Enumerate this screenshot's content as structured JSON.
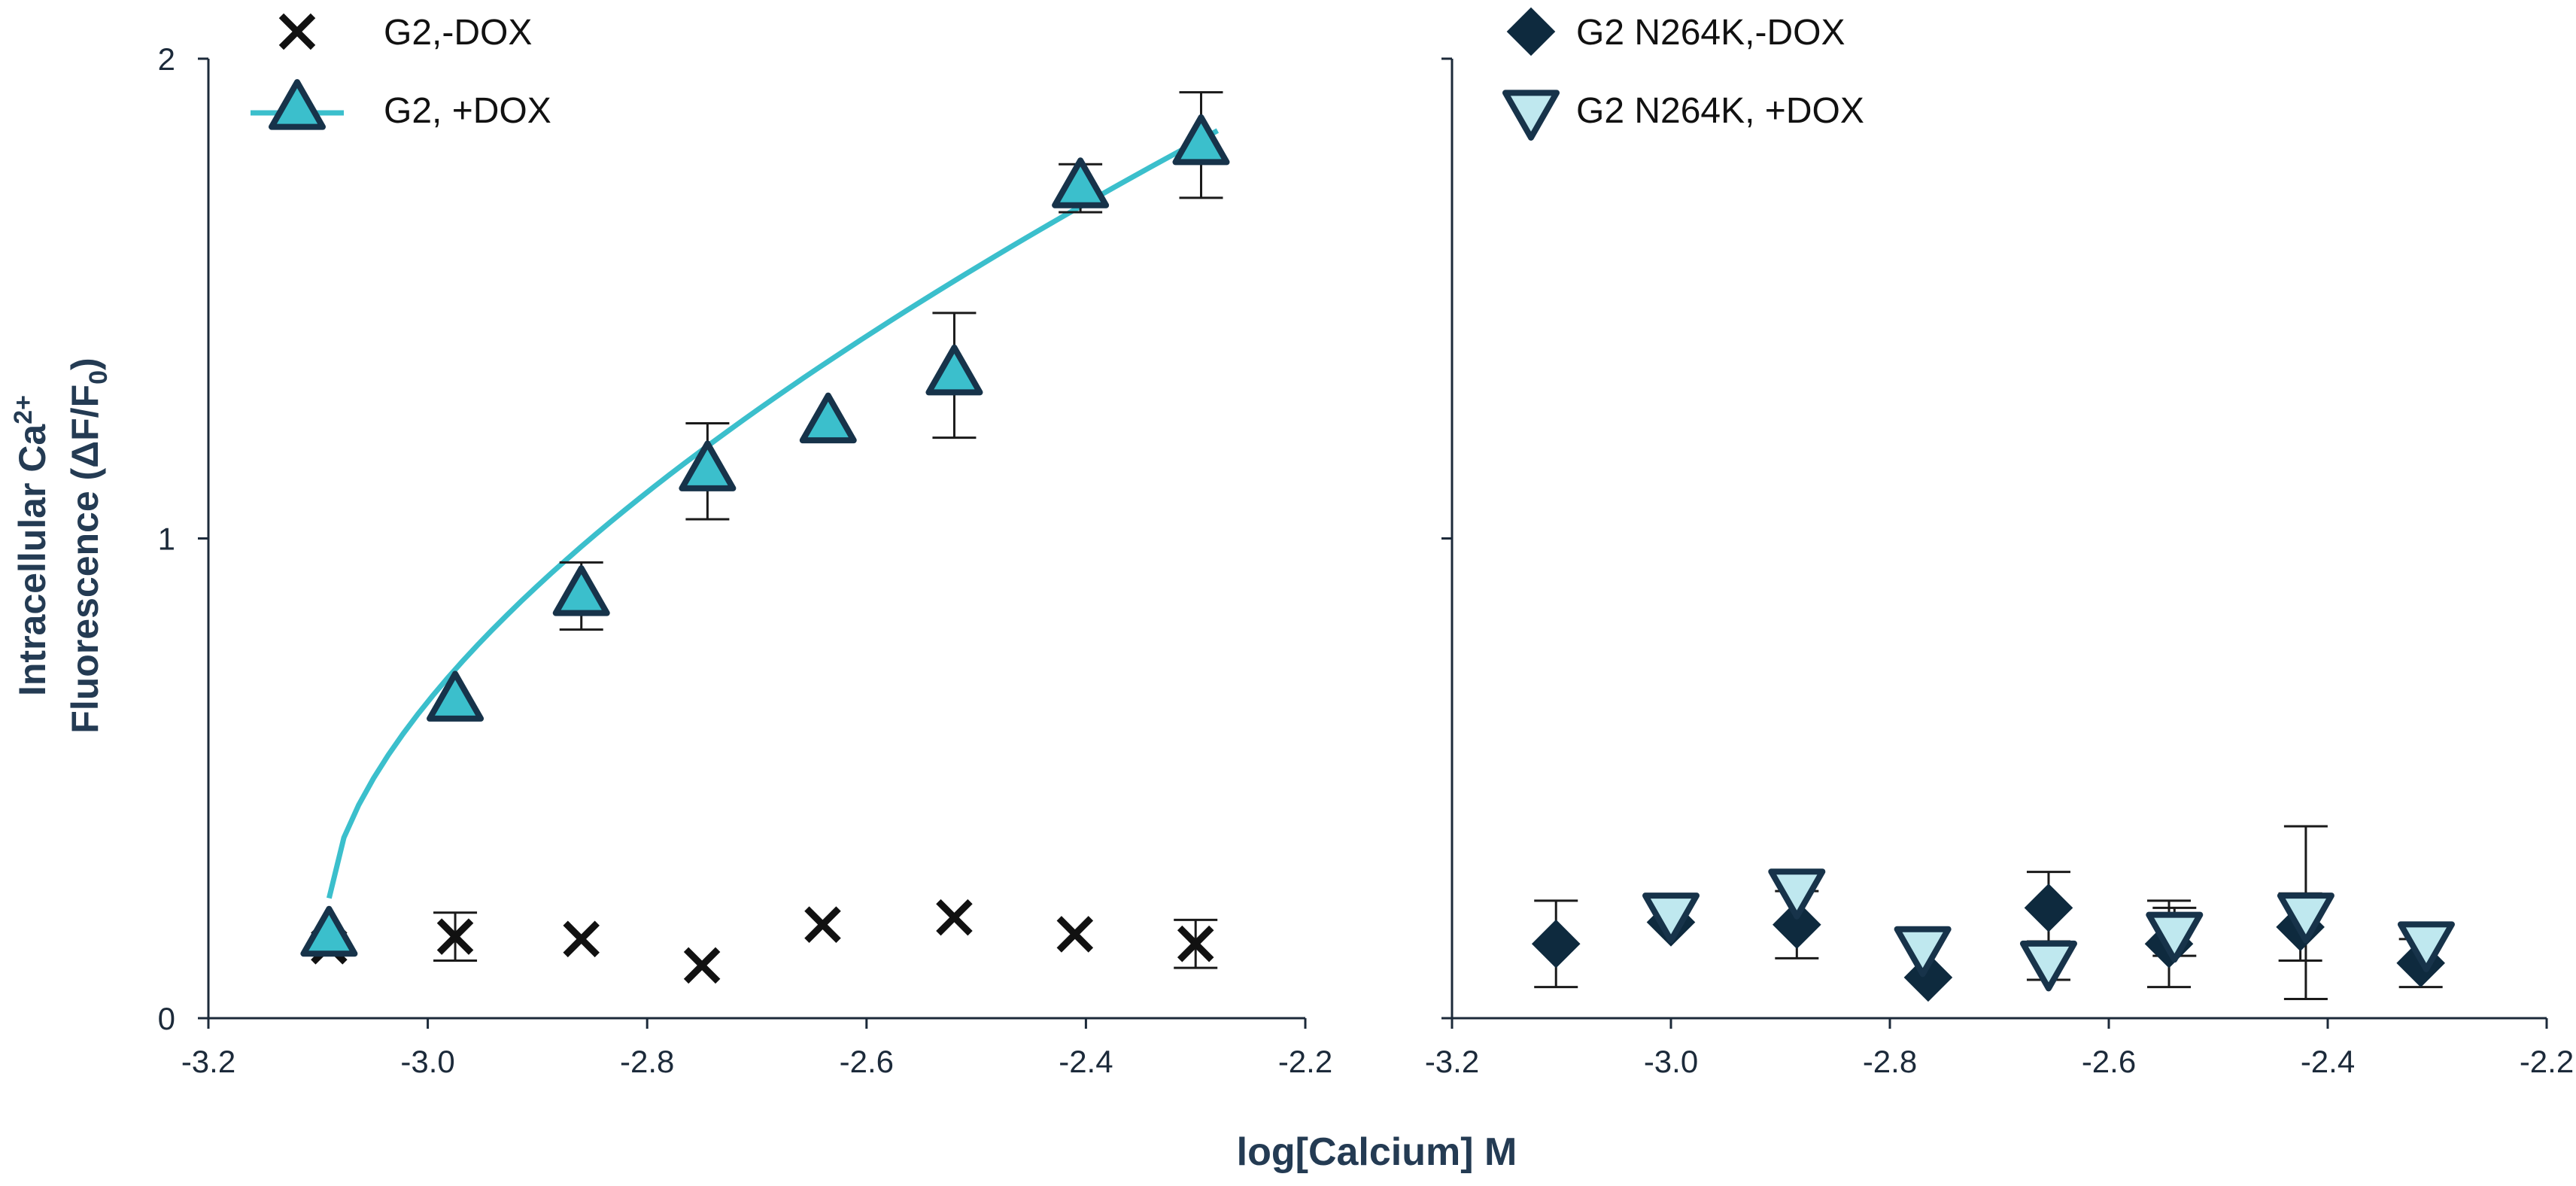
{
  "colors": {
    "teal": "#3bbfcc",
    "light_teal": "#bfe8ef",
    "navy": "#0e2a3e",
    "outline": "#17334a",
    "black": "#111111",
    "axis": "#1c2a3a"
  },
  "labels": {
    "ylabel_line1": "Intracellular Ca",
    "ylabel_sup": "2+",
    "ylabel_line2_a": "Fluorescence (ΔF/F",
    "ylabel_line2_sub": "0",
    "ylabel_line2_b": ")",
    "xlabel": "log[Calcium] M"
  },
  "chart_data": [
    {
      "type": "scatter",
      "panel": "left",
      "xlim": [
        -3.2,
        -2.2
      ],
      "ylim": [
        0,
        2
      ],
      "xticks": [
        -3.2,
        -3.0,
        -2.8,
        -2.6,
        -2.4,
        -2.2
      ],
      "xtick_labels": [
        "-3.2",
        "-3.0",
        "-2.8",
        "-2.6",
        "-2.4",
        "-2.2"
      ],
      "yticks": [
        0,
        1,
        2
      ],
      "ytick_labels": [
        "0",
        "1",
        "2"
      ],
      "legend_position": "top-left",
      "series": [
        {
          "name": "G2,-DOX",
          "marker": "x",
          "x": [
            -3.09,
            -2.975,
            -2.86,
            -2.75,
            -2.64,
            -2.52,
            -2.41,
            -2.3
          ],
          "y": [
            0.15,
            0.17,
            0.165,
            0.11,
            0.195,
            0.21,
            0.175,
            0.155
          ],
          "err": [
            0.0,
            0.05,
            0.0,
            0.0,
            0.0,
            0.0,
            0.0,
            0.05
          ]
        },
        {
          "name": "G2, +DOX",
          "marker": "triangle-up",
          "x": [
            -3.09,
            -2.975,
            -2.86,
            -2.745,
            -2.635,
            -2.52,
            -2.405,
            -2.295
          ],
          "y": [
            0.17,
            0.66,
            0.88,
            1.14,
            1.24,
            1.34,
            1.73,
            1.82
          ],
          "err": [
            0.0,
            0.0,
            0.07,
            0.1,
            0.0,
            0.13,
            0.05,
            0.11
          ],
          "fit": {
            "label": "fit",
            "x_start": -3.09,
            "x_end": -2.28,
            "y_start": 0.25,
            "y_end": 1.85
          }
        }
      ]
    },
    {
      "type": "scatter",
      "panel": "right",
      "xlim": [
        -3.2,
        -2.2
      ],
      "ylim": [
        0,
        2
      ],
      "xticks": [
        -3.2,
        -3.0,
        -2.8,
        -2.6,
        -2.4,
        -2.2
      ],
      "xtick_labels": [
        "-3.2",
        "-3.0",
        "-2.8",
        "-2.6",
        "-2.4",
        "-2.2"
      ],
      "yticks": [
        0,
        1,
        2
      ],
      "legend_position": "top-left",
      "series": [
        {
          "name": "G2 N264K,-DOX",
          "marker": "diamond",
          "x": [
            -3.105,
            -3.0,
            -2.885,
            -2.765,
            -2.655,
            -2.545,
            -2.425,
            -2.315
          ],
          "y": [
            0.155,
            0.2,
            0.195,
            0.085,
            0.23,
            0.155,
            0.19,
            0.115
          ],
          "err": [
            0.09,
            0.0,
            0.07,
            0.0,
            0.075,
            0.09,
            0.07,
            0.05
          ]
        },
        {
          "name": "G2 N264K, +DOX",
          "marker": "triangle-down",
          "x": [
            -3.0,
            -2.885,
            -2.77,
            -2.655,
            -2.54,
            -2.42,
            -2.31
          ],
          "y": [
            0.22,
            0.27,
            0.15,
            0.12,
            0.18,
            0.22,
            0.16
          ],
          "err": [
            0.0,
            0.0,
            0.0,
            0.04,
            0.05,
            0.18,
            0.0
          ]
        }
      ]
    }
  ]
}
